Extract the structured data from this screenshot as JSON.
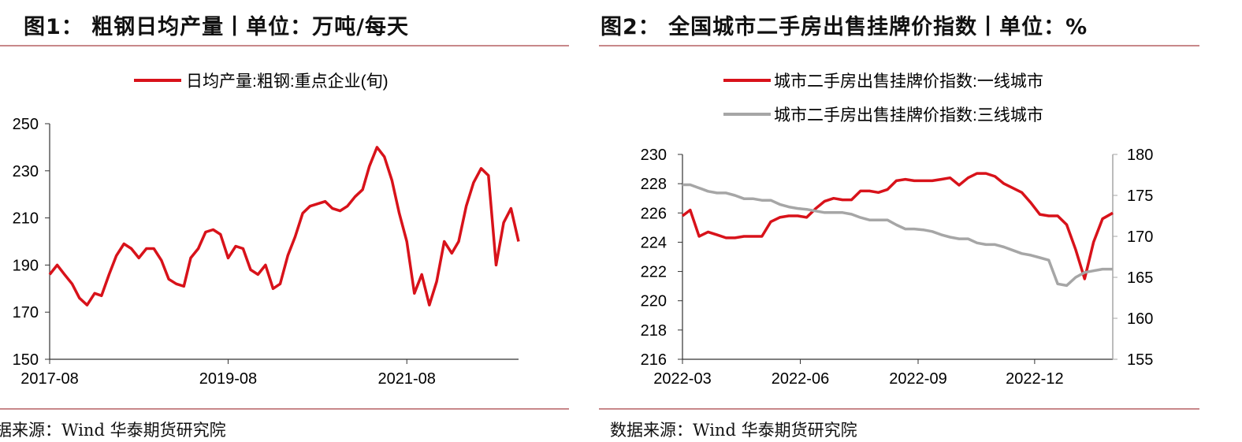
{
  "charts": [
    {
      "title": "图1：   粗钢日均产量丨单位：万吨/每天",
      "source": "据来源：Wind  华泰期货研究院",
      "colors": {
        "series": "#d8121a",
        "axis": "#333333",
        "rule": "#c8888a"
      }
    },
    {
      "title": "图2：   全国城市二手房出售挂牌价指数丨单位：%",
      "source": "数据来源：Wind  华泰期货研究院",
      "colors": {
        "series1": "#d8121a",
        "series2": "#a6a6a6",
        "axis": "#333333",
        "rule": "#c8888a"
      }
    }
  ],
  "chart_data": [
    {
      "type": "line",
      "title": "",
      "legend": {
        "position": "top-center"
      },
      "x_ticks": [
        "2017-08",
        "2019-08",
        "2021-08"
      ],
      "y_ticks": [
        150,
        170,
        190,
        210,
        230,
        250
      ],
      "ylim": [
        150,
        250
      ],
      "xlim": [
        "2017-08",
        "2022-11"
      ],
      "grid": false,
      "series": [
        {
          "name": "日均产量:粗钢:重点企业(旬)",
          "color": "#d8121a",
          "x": [
            "2017-08",
            "2017-09",
            "2017-10",
            "2017-11",
            "2017-12",
            "2018-01",
            "2018-02",
            "2018-03",
            "2018-04",
            "2018-05",
            "2018-06",
            "2018-07",
            "2018-08",
            "2018-09",
            "2018-10",
            "2018-11",
            "2018-12",
            "2019-01",
            "2019-02",
            "2019-03",
            "2019-04",
            "2019-05",
            "2019-06",
            "2019-07",
            "2019-08",
            "2019-09",
            "2019-10",
            "2019-11",
            "2019-12",
            "2020-01",
            "2020-02",
            "2020-03",
            "2020-04",
            "2020-05",
            "2020-06",
            "2020-07",
            "2020-08",
            "2020-09",
            "2020-10",
            "2020-11",
            "2020-12",
            "2021-01",
            "2021-02",
            "2021-03",
            "2021-04",
            "2021-05",
            "2021-06",
            "2021-07",
            "2021-08",
            "2021-09",
            "2021-10",
            "2021-11",
            "2021-12",
            "2022-01",
            "2022-02",
            "2022-03",
            "2022-04",
            "2022-05",
            "2022-06",
            "2022-07",
            "2022-08",
            "2022-09",
            "2022-10",
            "2022-11"
          ],
          "values": [
            186,
            190,
            186,
            182,
            176,
            173,
            178,
            177,
            186,
            194,
            199,
            197,
            193,
            197,
            197,
            192,
            184,
            182,
            181,
            193,
            197,
            204,
            205,
            203,
            193,
            198,
            197,
            188,
            186,
            190,
            180,
            182,
            194,
            202,
            212,
            215,
            216,
            217,
            214,
            213,
            215,
            219,
            222,
            232,
            240,
            236,
            226,
            212,
            200,
            178,
            186,
            173,
            183,
            200,
            195,
            200,
            215,
            225,
            231,
            228,
            190,
            208,
            214,
            200
          ]
        }
      ]
    },
    {
      "type": "line",
      "title": "",
      "legend": {
        "position": "top-center"
      },
      "x_ticks": [
        "2022-03",
        "2022-06",
        "2022-09",
        "2022-12"
      ],
      "y_ticks_left": [
        216,
        218,
        220,
        222,
        224,
        226,
        228,
        230
      ],
      "y_ticks_right": [
        155,
        160,
        165,
        170,
        175,
        180
      ],
      "ylim_left": [
        216,
        230
      ],
      "ylim_right": [
        155,
        180
      ],
      "xlim": [
        "2022-03-01",
        "2023-01-31"
      ],
      "grid": false,
      "series": [
        {
          "name": "城市二手房出售挂牌价指数:一线城市",
          "axis": "left",
          "color": "#d8121a",
          "x": [
            "2022-03-01",
            "2022-03-07",
            "2022-03-14",
            "2022-03-21",
            "2022-03-28",
            "2022-04-04",
            "2022-04-11",
            "2022-04-18",
            "2022-04-25",
            "2022-05-02",
            "2022-05-09",
            "2022-05-16",
            "2022-05-23",
            "2022-05-30",
            "2022-06-06",
            "2022-06-13",
            "2022-06-20",
            "2022-06-27",
            "2022-07-04",
            "2022-07-11",
            "2022-07-18",
            "2022-07-25",
            "2022-08-01",
            "2022-08-08",
            "2022-08-15",
            "2022-08-22",
            "2022-08-29",
            "2022-09-05",
            "2022-09-12",
            "2022-09-19",
            "2022-09-26",
            "2022-10-03",
            "2022-10-10",
            "2022-10-17",
            "2022-10-24",
            "2022-10-31",
            "2022-11-07",
            "2022-11-14",
            "2022-11-21",
            "2022-11-28",
            "2022-12-05",
            "2022-12-12",
            "2022-12-19",
            "2022-12-26",
            "2023-01-02",
            "2023-01-09",
            "2023-01-16",
            "2023-01-23",
            "2023-01-31"
          ],
          "values": [
            225.8,
            226.2,
            224.4,
            224.7,
            224.5,
            224.3,
            224.3,
            224.4,
            224.4,
            224.4,
            225.4,
            225.7,
            225.8,
            225.8,
            225.7,
            226.3,
            226.8,
            227.0,
            226.9,
            226.9,
            227.5,
            227.5,
            227.4,
            227.6,
            228.2,
            228.3,
            228.2,
            228.2,
            228.2,
            228.3,
            228.4,
            227.9,
            228.4,
            228.7,
            228.7,
            228.5,
            228.0,
            227.7,
            227.4,
            226.7,
            225.9,
            225.8,
            225.8,
            225.2,
            223.5,
            221.5,
            224.0,
            225.6,
            226.0
          ]
        },
        {
          "name": "城市二手房出售挂牌价指数:三线城市",
          "axis": "right",
          "color": "#a6a6a6",
          "x": [
            "2022-03-01",
            "2022-03-07",
            "2022-03-14",
            "2022-03-21",
            "2022-03-28",
            "2022-04-04",
            "2022-04-11",
            "2022-04-18",
            "2022-04-25",
            "2022-05-02",
            "2022-05-09",
            "2022-05-16",
            "2022-05-23",
            "2022-05-30",
            "2022-06-06",
            "2022-06-13",
            "2022-06-20",
            "2022-06-27",
            "2022-07-04",
            "2022-07-11",
            "2022-07-18",
            "2022-07-25",
            "2022-08-01",
            "2022-08-08",
            "2022-08-15",
            "2022-08-22",
            "2022-08-29",
            "2022-09-05",
            "2022-09-12",
            "2022-09-19",
            "2022-09-26",
            "2022-10-03",
            "2022-10-10",
            "2022-10-17",
            "2022-10-24",
            "2022-10-31",
            "2022-11-07",
            "2022-11-14",
            "2022-11-21",
            "2022-11-28",
            "2022-12-05",
            "2022-12-12",
            "2022-12-19",
            "2022-12-26",
            "2023-01-02",
            "2023-01-09",
            "2023-01-16",
            "2023-01-23",
            "2023-01-31"
          ],
          "values": [
            176.3,
            176.3,
            175.9,
            175.5,
            175.3,
            175.3,
            175.0,
            174.6,
            174.6,
            174.4,
            174.4,
            173.9,
            173.6,
            173.4,
            173.3,
            173.1,
            172.9,
            172.9,
            172.9,
            172.7,
            172.3,
            172.0,
            172.0,
            172.0,
            171.4,
            170.9,
            170.9,
            170.8,
            170.6,
            170.2,
            169.9,
            169.7,
            169.7,
            169.2,
            169.0,
            169.0,
            168.7,
            168.3,
            167.9,
            167.7,
            167.4,
            167.1,
            164.2,
            164.0,
            165.0,
            165.6,
            165.8,
            166.0,
            166.0
          ]
        }
      ]
    }
  ]
}
